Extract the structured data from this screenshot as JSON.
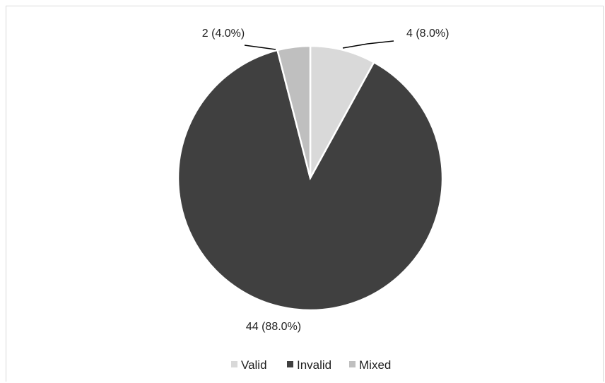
{
  "chart_data": {
    "type": "pie",
    "categories": [
      "Valid",
      "Invalid",
      "Mixed"
    ],
    "values": [
      4,
      44,
      2
    ],
    "percentages": [
      8.0,
      88.0,
      4.0
    ],
    "data_labels": [
      "4 (8.0%)",
      "44 (88.0%)",
      "2 (4.0%)"
    ],
    "colors": [
      "#d9d9d9",
      "#404040",
      "#bfbfbf"
    ],
    "legend": {
      "position": "bottom",
      "entries": [
        "Valid",
        "Invalid",
        "Mixed"
      ]
    },
    "start_angle": "12 o'clock",
    "direction": "clockwise"
  }
}
